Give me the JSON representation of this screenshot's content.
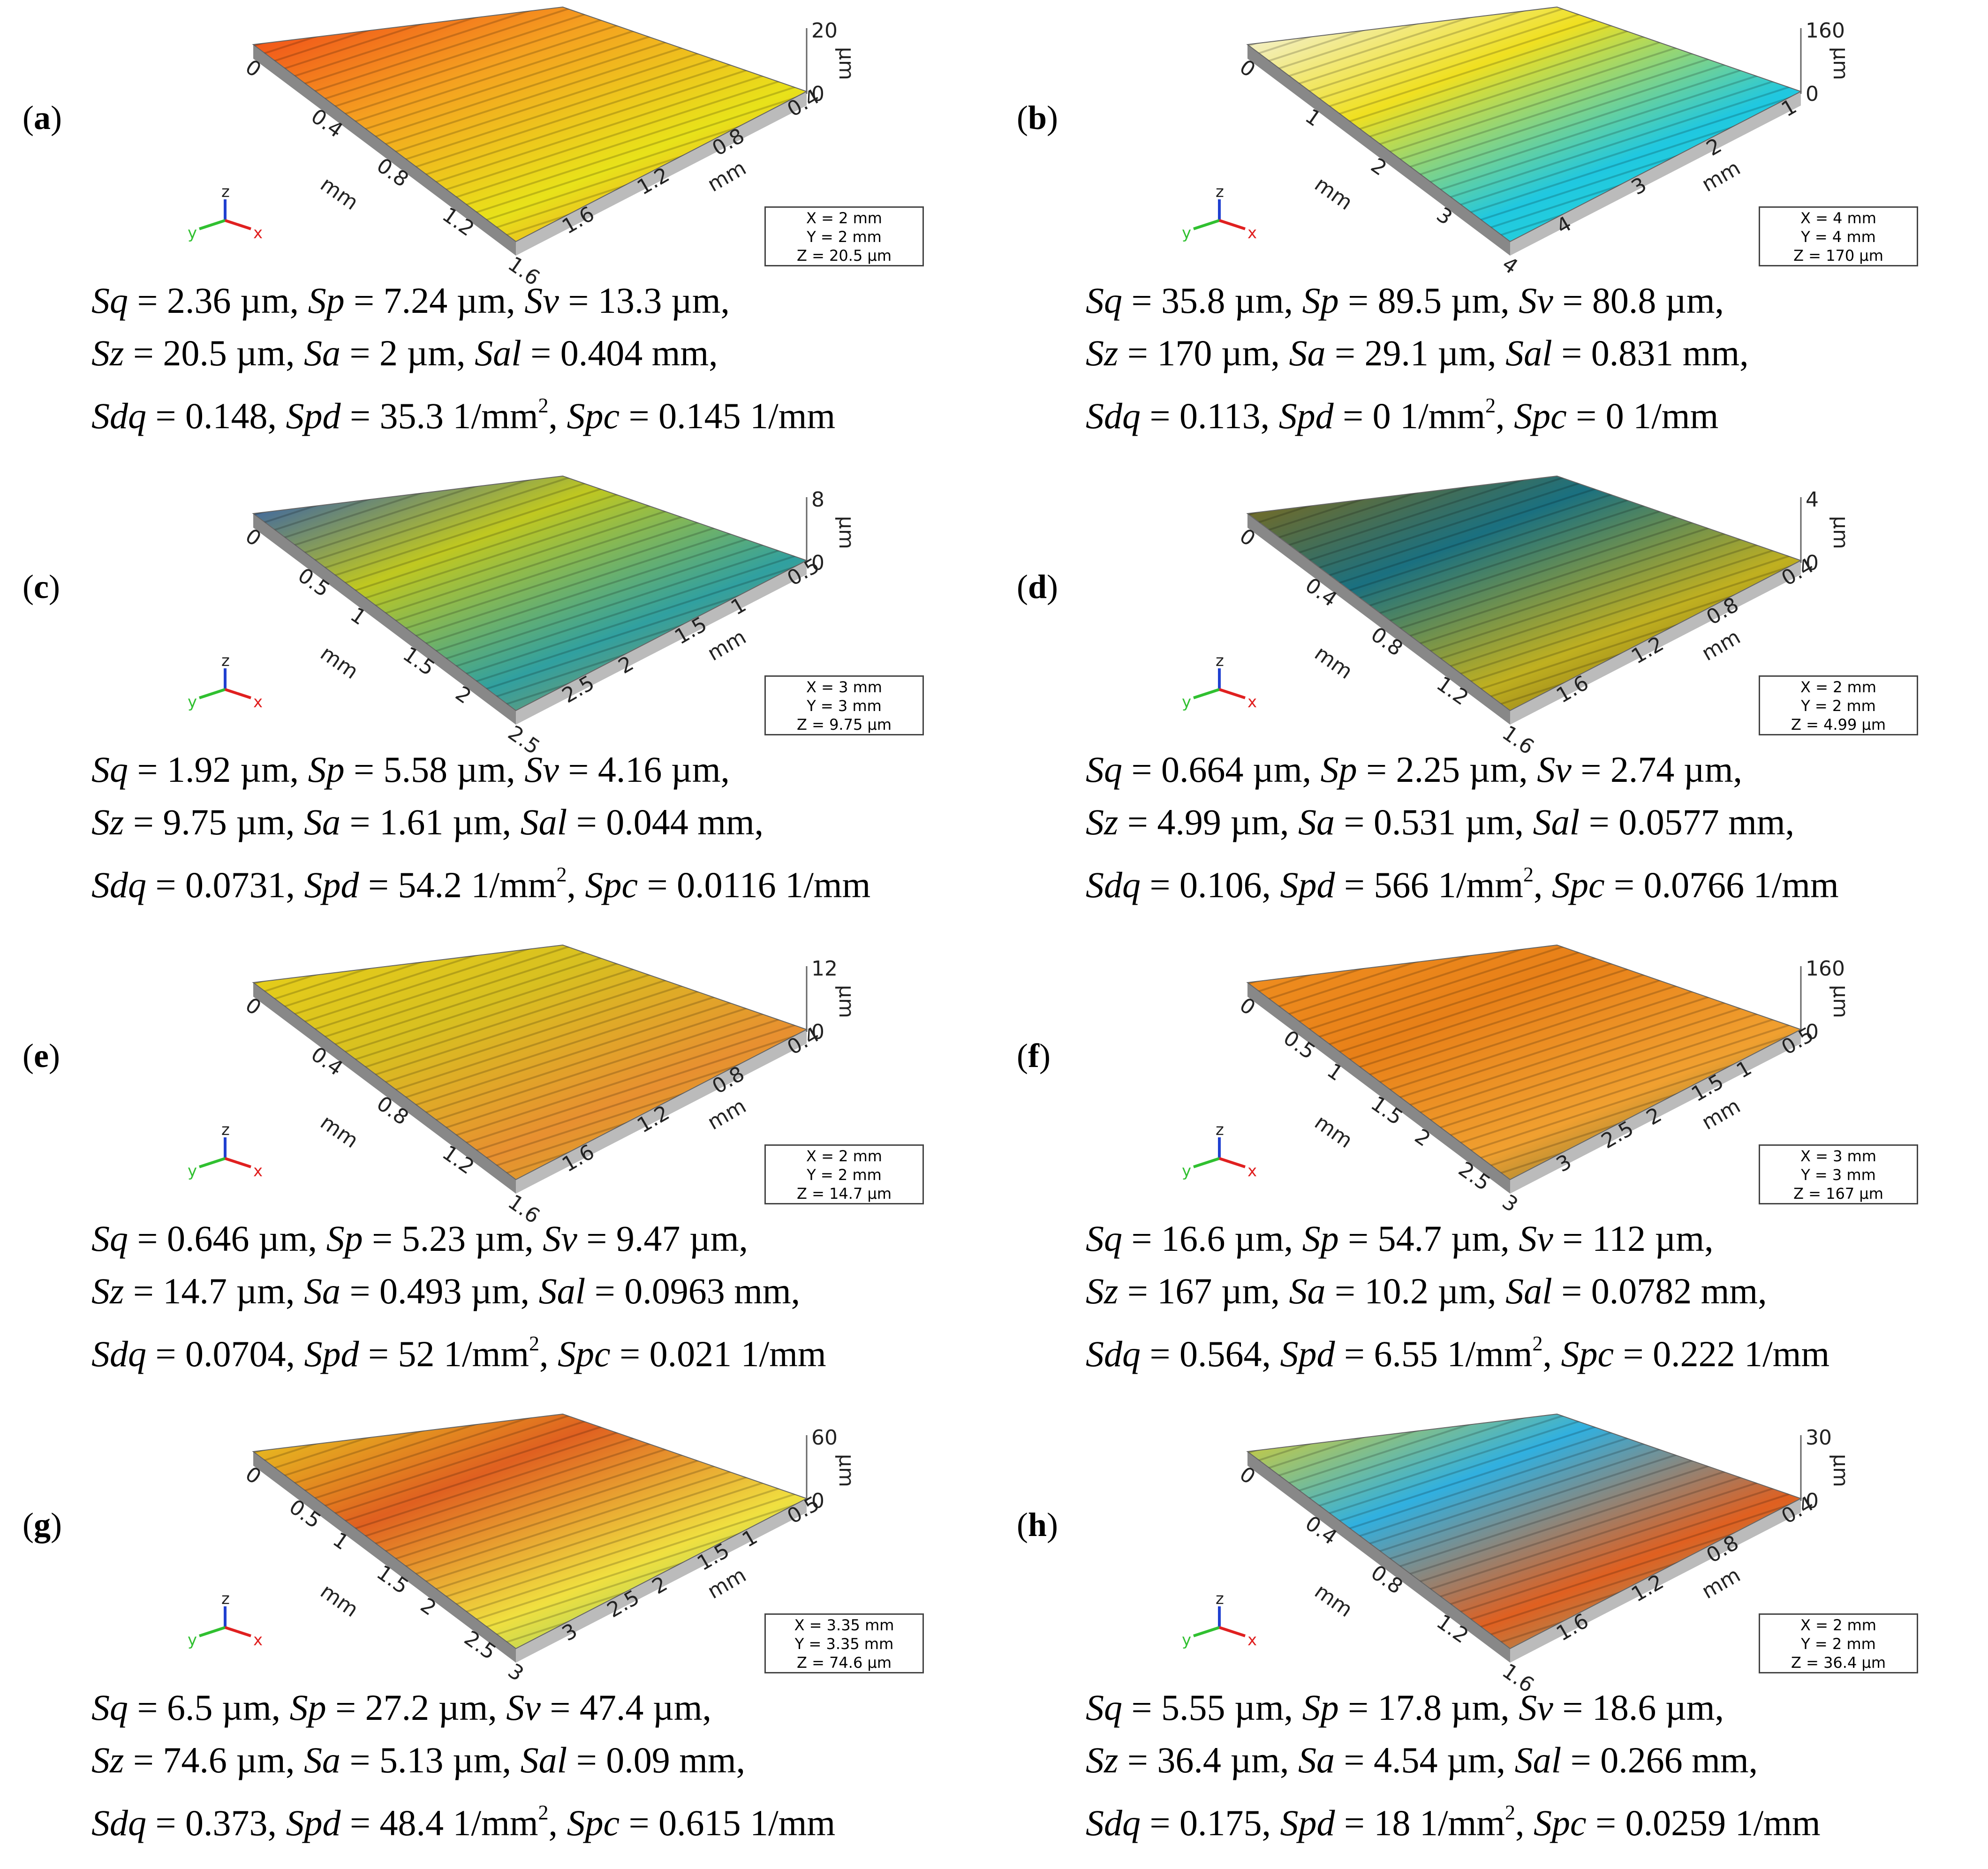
{
  "panels": [
    {
      "label": "a",
      "surface_colors": [
        "#f04018",
        "#f5a020",
        "#e8e21a",
        "#f07030"
      ],
      "axis": {
        "x_ticks": [
          "0",
          "0.4",
          "0.8",
          "1.2",
          "1.6"
        ],
        "y_ticks": [
          "0.4",
          "0.8",
          "1.2",
          "1.6"
        ],
        "unit_left": "mm",
        "unit_right": "mm",
        "z_max": "20",
        "z_min": "0",
        "z_unit": "µm"
      },
      "box": {
        "x": "X = 2 mm",
        "y": "Y = 2 mm",
        "z": "Z = 20.5 µm"
      },
      "params": [
        {
          "Sq": "2.36 µm",
          "Sp": "7.24 µm",
          "Sv": "13.3 µm"
        },
        {
          "Sz": "20.5 µm",
          "Sa": "2 µm",
          "Sal": "0.404 mm"
        },
        {
          "Sdq": "0.148",
          "Spd": "35.3 1/mm",
          "Spc": "0.145 1/mm"
        }
      ]
    },
    {
      "label": "b",
      "surface_colors": [
        "#f4f4f4",
        "#f0e020",
        "#20c8e0",
        "#30e0d0"
      ],
      "axis": {
        "x_ticks": [
          "0",
          "1",
          "2",
          "3",
          "4"
        ],
        "y_ticks": [
          "1",
          "2",
          "3",
          "4"
        ],
        "unit_left": "mm",
        "unit_right": "mm",
        "z_max": "160",
        "z_min": "0",
        "z_unit": "µm"
      },
      "box": {
        "x": "X = 4 mm",
        "y": "Y = 4 mm",
        "z": "Z = 170 µm"
      },
      "params": [
        {
          "Sq": "35.8 µm",
          "Sp": "89.5 µm",
          "Sv": "80.8 µm"
        },
        {
          "Sz": "170 µm",
          "Sa": "29.1 µm",
          "Sal": "0.831 mm"
        },
        {
          "Sdq": "0.113",
          "Spd": "0 1/mm",
          "Spc": "0 1/mm"
        }
      ]
    },
    {
      "label": "c",
      "surface_colors": [
        "#2050c0",
        "#c0c820",
        "#30a0a0",
        "#d09030"
      ],
      "axis": {
        "x_ticks": [
          "0",
          "0.5",
          "1",
          "1.5",
          "2",
          "2.5"
        ],
        "y_ticks": [
          "0.5",
          "1",
          "1.5",
          "2",
          "2.5"
        ],
        "unit_left": "mm",
        "unit_right": "mm",
        "z_max": "8",
        "z_min": "0",
        "z_unit": "µm"
      },
      "box": {
        "x": "X = 3 mm",
        "y": "Y = 3 mm",
        "z": "Z = 9.75 µm"
      },
      "params": [
        {
          "Sq": "1.92 µm",
          "Sp": "5.58 µm",
          "Sv": "4.16 µm"
        },
        {
          "Sz": "9.75 µm",
          "Sa": "1.61 µm",
          "Sal": "0.044 mm"
        },
        {
          "Sdq": "0.0731",
          "Spd": "54.2 1/mm",
          "Spc": "0.0116 1/mm"
        }
      ]
    },
    {
      "label": "d",
      "surface_colors": [
        "#8a6a10",
        "#1a7080",
        "#c0b020",
        "#604010"
      ],
      "axis": {
        "x_ticks": [
          "0",
          "0.4",
          "0.8",
          "1.2",
          "1.6"
        ],
        "y_ticks": [
          "0.4",
          "0.8",
          "1.2",
          "1.6"
        ],
        "unit_left": "mm",
        "unit_right": "mm",
        "z_max": "4",
        "z_min": "0",
        "z_unit": "µm"
      },
      "box": {
        "x": "X = 2 mm",
        "y": "Y = 2 mm",
        "z": "Z = 4.99 µm"
      },
      "params": [
        {
          "Sq": "0.664 µm",
          "Sp": "2.25 µm",
          "Sv": "2.74 µm"
        },
        {
          "Sz": "4.99 µm",
          "Sa": "0.531 µm",
          "Sal": "0.0577 mm"
        },
        {
          "Sdq": "0.106",
          "Spd": "566 1/mm",
          "Spc": "0.0766 1/mm"
        }
      ]
    },
    {
      "label": "e",
      "surface_colors": [
        "#e8d018",
        "#d8c020",
        "#e89030",
        "#c8b828"
      ],
      "axis": {
        "x_ticks": [
          "0",
          "0.4",
          "0.8",
          "1.2",
          "1.6"
        ],
        "y_ticks": [
          "0.4",
          "0.8",
          "1.2",
          "1.6"
        ],
        "unit_left": "mm",
        "unit_right": "mm",
        "z_max": "12",
        "z_min": "0",
        "z_unit": "µm"
      },
      "box": {
        "x": "X = 2 mm",
        "y": "Y = 2 mm",
        "z": "Z = 14.7 µm"
      },
      "params": [
        {
          "Sq": "0.646 µm",
          "Sp": "5.23 µm",
          "Sv": "9.47 µm"
        },
        {
          "Sz": "14.7 µm",
          "Sa": "0.493 µm",
          "Sal": "0.0963 mm"
        },
        {
          "Sdq": "0.0704",
          "Spd": "52 1/mm",
          "Spc": "0.021 1/mm"
        }
      ]
    },
    {
      "label": "f",
      "surface_colors": [
        "#f09020",
        "#e88018",
        "#f0a030",
        "#206040"
      ],
      "axis": {
        "x_ticks": [
          "0",
          "0.5",
          "1",
          "1.5",
          "2",
          "2.5",
          "3"
        ],
        "y_ticks": [
          "0.5",
          "1",
          "1.5",
          "2",
          "2.5",
          "3"
        ],
        "unit_left": "mm",
        "unit_right": "mm",
        "z_max": "160",
        "z_min": "0",
        "z_unit": "µm"
      },
      "box": {
        "x": "X = 3 mm",
        "y": "Y = 3 mm",
        "z": "Z = 167 µm"
      },
      "params": [
        {
          "Sq": "16.6 µm",
          "Sp": "54.7 µm",
          "Sv": "112 µm"
        },
        {
          "Sz": "167 µm",
          "Sa": "10.2 µm",
          "Sal": "0.0782 mm"
        },
        {
          "Sdq": "0.564",
          "Spd": "6.55 1/mm",
          "Spc": "0.222 1/mm"
        }
      ]
    },
    {
      "label": "g",
      "surface_colors": [
        "#e8d020",
        "#e06020",
        "#f0e040",
        "#50c080"
      ],
      "axis": {
        "x_ticks": [
          "0",
          "0.5",
          "1",
          "1.5",
          "2",
          "2.5",
          "3"
        ],
        "y_ticks": [
          "0.5",
          "1",
          "1.5",
          "2",
          "2.5",
          "3"
        ],
        "unit_left": "mm",
        "unit_right": "mm",
        "z_max": "60",
        "z_min": "0",
        "z_unit": "µm"
      },
      "box": {
        "x": "X = 3.35 mm",
        "y": "Y = 3.35 mm",
        "z": "Z = 74.6 µm"
      },
      "params": [
        {
          "Sq": "6.5 µm",
          "Sp": "27.2 µm",
          "Sv": "47.4 µm"
        },
        {
          "Sz": "74.6 µm",
          "Sa": "5.13 µm",
          "Sal": "0.09 mm"
        },
        {
          "Sdq": "0.373",
          "Spd": "48.4 1/mm",
          "Spc": "0.615 1/mm"
        }
      ]
    },
    {
      "label": "h",
      "surface_colors": [
        "#e8d020",
        "#30b0e0",
        "#e06020",
        "#50d0b0"
      ],
      "axis": {
        "x_ticks": [
          "0",
          "0.4",
          "0.8",
          "1.2",
          "1.6"
        ],
        "y_ticks": [
          "0.4",
          "0.8",
          "1.2",
          "1.6"
        ],
        "unit_left": "mm",
        "unit_right": "mm",
        "z_max": "30",
        "z_min": "0",
        "z_unit": "µm"
      },
      "box": {
        "x": "X = 2 mm",
        "y": "Y = 2 mm",
        "z": "Z = 36.4 µm"
      },
      "params": [
        {
          "Sq": "5.55 µm",
          "Sp": "17.8 µm",
          "Sv": "18.6 µm"
        },
        {
          "Sz": "36.4 µm",
          "Sa": "4.54 µm",
          "Sal": "0.266 mm"
        },
        {
          "Sdq": "0.175",
          "Spd": "18 1/mm",
          "Spc": "0.0259 1/mm"
        }
      ]
    }
  ],
  "triad": {
    "x": "x",
    "y": "y",
    "z": "z"
  }
}
